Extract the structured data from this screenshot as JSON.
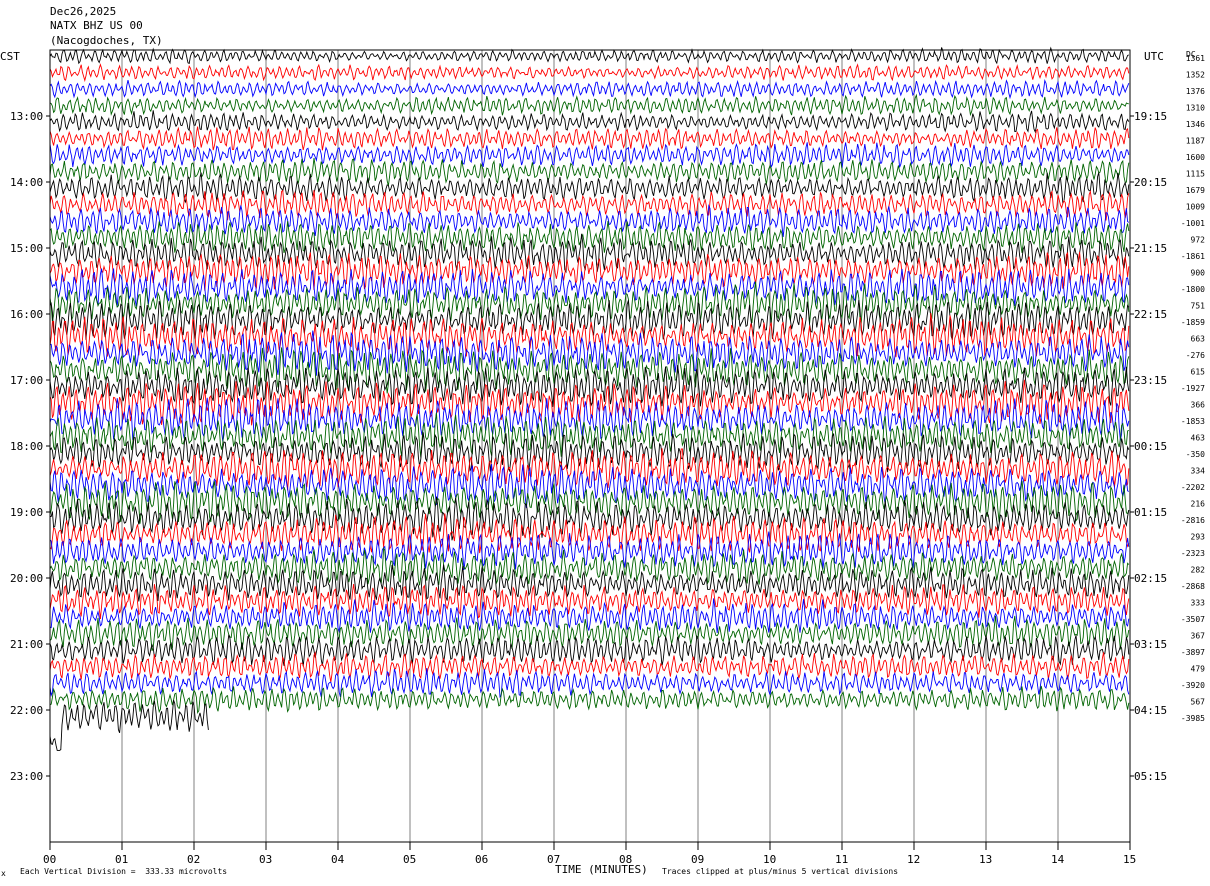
{
  "header": {
    "date": "Dec26,2025",
    "station": "NATX BHZ US 00",
    "location": "(Nacogdoches, TX)"
  },
  "labels": {
    "left_zone": "CST",
    "right_zone": "UTC",
    "dc_header": "DC"
  },
  "footer": {
    "scale_note": "Each Vertical Division =  333.33 microvolts",
    "clip_note": "Traces clipped at plus/minus 5 vertical divisions",
    "corner_mark": "x"
  },
  "colors": {
    "trace_cycle": [
      "#000000",
      "#ff0000",
      "#0000ff",
      "#006400"
    ],
    "grid": "#808080",
    "frame": "#000000"
  },
  "chart_data": {
    "type": "line",
    "title": "",
    "xlabel": "TIME (MINUTES)",
    "xlim": [
      0,
      15
    ],
    "x_ticks": [
      "00",
      "01",
      "02",
      "03",
      "04",
      "05",
      "06",
      "07",
      "08",
      "09",
      "10",
      "11",
      "12",
      "13",
      "14",
      "15"
    ],
    "traces_per_hour": 4,
    "trace_interval_minutes": 15,
    "start_cst": "12:00",
    "left_hour_labels": [
      "13:00",
      "14:00",
      "15:00",
      "16:00",
      "17:00",
      "18:00",
      "19:00",
      "20:00",
      "21:00",
      "22:00",
      "23:00"
    ],
    "right_hour_labels": [
      "19:15",
      "20:15",
      "21:15",
      "22:15",
      "23:15",
      "00:15",
      "01:15",
      "02:15",
      "03:15",
      "04:15",
      "05:15"
    ],
    "trace_count": 41,
    "dc_offsets": [
      "1361",
      "1352",
      "1376",
      "1310",
      "1346",
      "1187",
      "1600",
      "1115",
      "1679",
      "1009",
      "-1001",
      "972",
      "-1861",
      "900",
      "-1800",
      "751",
      "-1859",
      "663",
      "-276",
      "615",
      "-1927",
      "366",
      "-1853",
      "463",
      "-350",
      "334",
      "-2202",
      "216",
      "-2816",
      "293",
      "-2323",
      "282",
      "-2868",
      "333",
      "-3507",
      "367",
      "-3897",
      "479",
      "-3920",
      "567",
      "-3985"
    ],
    "amplitude_divisions": [
      1.2,
      1.3,
      1.4,
      1.6,
      1.6,
      1.8,
      2.0,
      2.1,
      2.2,
      2.3,
      2.5,
      2.7,
      2.9,
      3.0,
      3.1,
      3.2,
      3.3,
      3.4,
      3.4,
      3.5,
      3.5,
      3.5,
      3.4,
      3.4,
      3.3,
      3.3,
      3.3,
      3.2,
      3.2,
      3.1,
      3.0,
      3.0,
      2.9,
      2.8,
      2.7,
      2.6,
      2.5,
      2.3,
      2.2,
      2.0,
      3.0
    ],
    "final_trace_end_minute": 2.2,
    "trace_clip_divisions": 5
  }
}
